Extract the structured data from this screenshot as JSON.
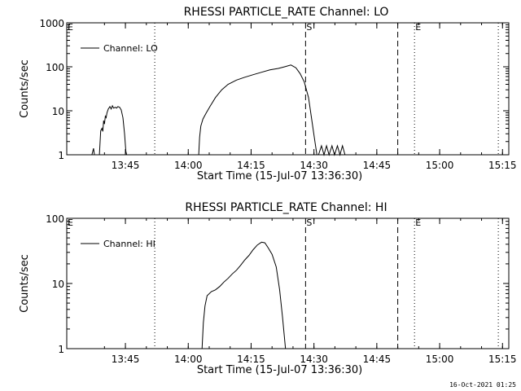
{
  "footer_stamp": "16-Oct-2021 01:25",
  "chart_data": [
    {
      "type": "line",
      "title": "RHESSI PARTICLE_RATE Channel: LO",
      "xlabel": "Start Time (15-Jul-07 13:36:30)",
      "ylabel": "Counts/sec",
      "yscale": "log",
      "ylim": [
        1,
        1000
      ],
      "xlim_minutes": [
        -5.5,
        100
      ],
      "x_ticks": [
        "13:45",
        "14:00",
        "14:15",
        "14:30",
        "14:45",
        "15:00",
        "15:15"
      ],
      "y_ticks": [
        "1",
        "10",
        "100",
        "1000"
      ],
      "legend": {
        "position": "top-left",
        "label": "Channel: LO"
      },
      "markers": [
        {
          "label": "",
          "time": "13:52",
          "style": "dotted"
        },
        {
          "label": "S",
          "time": "14:28",
          "style": "dashed"
        },
        {
          "label": "",
          "time": "14:50",
          "style": "dashed"
        },
        {
          "label": "E",
          "time": "14:54",
          "style": "dotted"
        },
        {
          "label": "",
          "time": "15:14",
          "style": "dotted"
        }
      ],
      "left_marker": "E",
      "series": [
        {
          "name": "Channel: LO",
          "segments": [
            [
              [
                0.5,
                1
              ],
              [
                0.9,
                1.4
              ],
              [
                1.1,
                1
              ],
              [
                2.3,
                1
              ],
              [
                2.6,
                3.5
              ],
              [
                2.9,
                4
              ],
              [
                3.1,
                3.4
              ],
              [
                3.3,
                6
              ],
              [
                3.5,
                5
              ],
              [
                3.7,
                7.5
              ],
              [
                3.9,
                7
              ],
              [
                4.1,
                9
              ],
              [
                4.4,
                11
              ],
              [
                4.8,
                12.5
              ],
              [
                5.1,
                11
              ],
              [
                5.4,
                13
              ],
              [
                5.7,
                11.5
              ],
              [
                6.1,
                12
              ],
              [
                6.4,
                11.5
              ],
              [
                6.7,
                12.5
              ],
              [
                7.1,
                12
              ],
              [
                7.5,
                10.5
              ],
              [
                7.9,
                7
              ],
              [
                8.3,
                3
              ],
              [
                8.6,
                1.2
              ],
              [
                8.8,
                1
              ]
            ],
            [
              [
                26.0,
                1
              ],
              [
                26.2,
                2.5
              ],
              [
                26.5,
                4.5
              ],
              [
                27,
                6.5
              ],
              [
                27.8,
                9
              ],
              [
                28.8,
                13
              ],
              [
                30,
                20
              ],
              [
                31.5,
                30
              ],
              [
                33,
                40
              ],
              [
                35,
                50
              ],
              [
                37,
                58
              ],
              [
                39,
                66
              ],
              [
                41,
                75
              ],
              [
                43,
                85
              ],
              [
                45,
                92
              ],
              [
                46.5,
                100
              ],
              [
                48,
                110
              ],
              [
                49.2,
                95
              ],
              [
                50.2,
                70
              ],
              [
                51.2,
                45
              ],
              [
                52.2,
                20
              ],
              [
                53,
                6
              ],
              [
                53.8,
                1.8
              ],
              [
                54.2,
                1
              ]
            ],
            [
              [
                54.6,
                1
              ],
              [
                55.3,
                1.6
              ],
              [
                55.9,
                1
              ],
              [
                56.5,
                1.6
              ],
              [
                57.1,
                1
              ],
              [
                57.8,
                1.6
              ],
              [
                58.4,
                1
              ],
              [
                59.1,
                1.6
              ],
              [
                59.7,
                1
              ],
              [
                60.3,
                1.6
              ],
              [
                60.9,
                1
              ]
            ]
          ]
        }
      ]
    },
    {
      "type": "line",
      "title": "RHESSI PARTICLE_RATE Channel: HI",
      "xlabel": "Start Time (15-Jul-07 13:36:30)",
      "ylabel": "Counts/sec",
      "yscale": "log",
      "ylim": [
        1,
        100
      ],
      "xlim_minutes": [
        -5.5,
        100
      ],
      "x_ticks": [
        "13:45",
        "14:00",
        "14:15",
        "14:30",
        "14:45",
        "15:00",
        "15:15"
      ],
      "y_ticks": [
        "1",
        "10",
        "100"
      ],
      "legend": {
        "position": "top-left",
        "label": "Channel: HI"
      },
      "markers": [
        {
          "label": "",
          "time": "13:52",
          "style": "dotted"
        },
        {
          "label": "S",
          "time": "14:28",
          "style": "dashed"
        },
        {
          "label": "",
          "time": "14:50",
          "style": "dashed"
        },
        {
          "label": "E",
          "time": "14:54",
          "style": "dotted"
        },
        {
          "label": "",
          "time": "15:14",
          "style": "dotted"
        }
      ],
      "left_marker": "E",
      "series": [
        {
          "name": "Channel: HI",
          "segments": [
            [
              [
                26.8,
                1
              ],
              [
                27.1,
                2.5
              ],
              [
                27.5,
                4.5
              ],
              [
                28,
                6.5
              ],
              [
                29,
                7.5
              ],
              [
                30,
                8
              ],
              [
                31,
                9
              ],
              [
                32,
                10.5
              ],
              [
                33,
                12
              ],
              [
                34,
                14
              ],
              [
                35,
                16
              ],
              [
                36,
                19
              ],
              [
                37,
                23
              ],
              [
                38,
                27
              ],
              [
                39,
                33
              ],
              [
                40,
                39
              ],
              [
                41,
                43
              ],
              [
                41.8,
                42
              ],
              [
                42.6,
                35
              ],
              [
                43.5,
                28
              ],
              [
                44.5,
                18
              ],
              [
                45.3,
                8
              ],
              [
                46,
                3
              ],
              [
                46.7,
                1
              ]
            ]
          ]
        }
      ]
    }
  ]
}
